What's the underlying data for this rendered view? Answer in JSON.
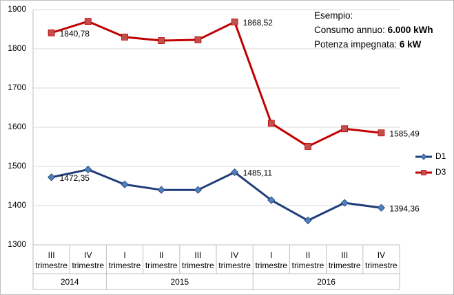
{
  "chart_data": {
    "type": "line",
    "categories": [
      "III trimestre",
      "IV trimestre",
      "I trimestre",
      "II trimestre",
      "III trimestre",
      "IV trimestre",
      "I trimestre",
      "II trimestre",
      "III trimestre",
      "IV trimestre"
    ],
    "category_groups": [
      {
        "label": "2014",
        "span": 2
      },
      {
        "label": "2015",
        "span": 4
      },
      {
        "label": "2016",
        "span": 4
      }
    ],
    "series": [
      {
        "name": "D1",
        "color": "#1f3d7a",
        "marker_color": "#4f81bd",
        "marker": "diamond",
        "values": [
          1472.35,
          1492,
          1454,
          1440,
          1440,
          1485.11,
          1414,
          1362,
          1407,
          1394.36
        ],
        "value_labels": [
          "1472,35",
          null,
          null,
          null,
          null,
          "1485,11",
          null,
          null,
          null,
          "1394,36"
        ]
      },
      {
        "name": "D3",
        "color": "#c00000",
        "marker_color": "#c0504d",
        "marker": "square",
        "values": [
          1840.78,
          1870,
          1830,
          1821,
          1823,
          1868.52,
          1610,
          1551,
          1596,
          1585.49
        ],
        "value_labels": [
          "1840,78",
          null,
          null,
          null,
          null,
          "1868,52",
          null,
          null,
          null,
          "1585,49"
        ]
      }
    ],
    "ylim": [
      1300,
      1900
    ],
    "yticks": [
      1300,
      1400,
      1500,
      1600,
      1700,
      1800,
      1900
    ],
    "grid": true,
    "legend": "right",
    "annotation": {
      "title": "Esempio:",
      "lines": [
        {
          "text": "Consumo annuo: ",
          "bold": "6.000 kWh"
        },
        {
          "text": "Potenza impegnata: ",
          "bold": "6 kW"
        }
      ]
    }
  }
}
